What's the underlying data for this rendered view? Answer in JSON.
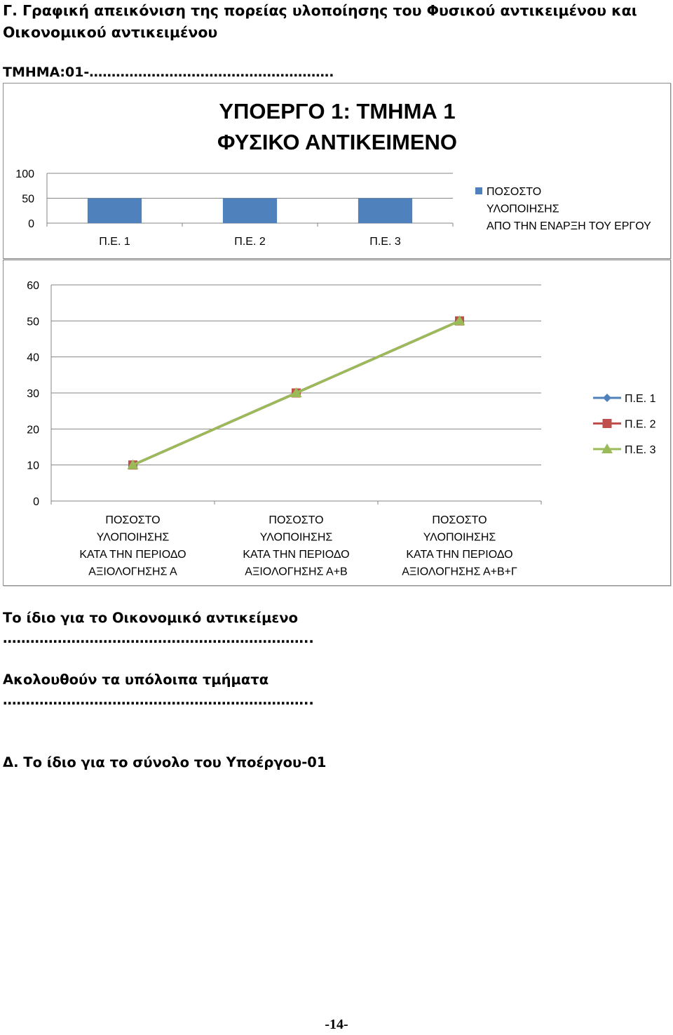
{
  "document": {
    "heading": "Γ. Γραφική απεικόνιση της πορείας υλοποίησης του Φυσικού αντικειμένου και Οικονομικού αντικειμένου",
    "section_label": "ΤΜΗΜΑ:01-……………………………………………….",
    "para_same_financial": "Το ίδιο για το Οικονομικό αντικείμενο",
    "dots_1": "…………………………………………………………..",
    "para_remaining": "Ακολουθούν τα υπόλοιπα τμήματα",
    "dots_2": "…………………………………………………………..",
    "para_total": "Δ. Το ίδιο για το σύνολο του Υποέργου-01",
    "page_number": "-14-"
  },
  "chart_data": [
    {
      "type": "bar",
      "title": [
        "ΥΠΟΕΡΓΟ 1: ΤΜΗΜΑ 1",
        "ΦΥΣΙΚΟ ΑΝΤΙΚΕΙΜΕΝΟ"
      ],
      "categories": [
        "Π.Ε. 1",
        "Π.Ε. 2",
        "Π.Ε. 3"
      ],
      "series": [
        {
          "name": [
            "ΠΟΣΟΣΤΟ",
            "ΥΛΟΠΟΙΗΣΗΣ",
            "ΑΠΟ ΤΗΝ ΕΝΑΡΞΗ ΤΟΥ ΕΡΓΟΥ"
          ],
          "color": "#4f81bd",
          "values": [
            50,
            50,
            50
          ]
        }
      ],
      "yticks": [
        0,
        50,
        100
      ],
      "ylim": [
        0,
        100
      ],
      "grid": true,
      "legend": "right"
    },
    {
      "type": "line",
      "categories": [
        [
          "ΠΟΣΟΣΤΟ",
          "ΥΛΟΠΟΙΗΣΗΣ",
          "ΚΑΤΑ ΤΗΝ ΠΕΡΙΟΔΟ",
          "ΑΞΙΟΛΟΓΗΣΗΣ Α"
        ],
        [
          "ΠΟΣΟΣΤΟ",
          "ΥΛΟΠΟΙΗΣΗΣ",
          "ΚΑΤΑ ΤΗΝ ΠΕΡΙΟΔΟ",
          "ΑΞΙΟΛΟΓΗΣΗΣ Α+Β"
        ],
        [
          "ΠΟΣΟΣΤΟ",
          "ΥΛΟΠΟΙΗΣΗΣ",
          "ΚΑΤΑ ΤΗΝ ΠΕΡΙΟΔΟ",
          "ΑΞΙΟΛΟΓΗΣΗΣ Α+Β+Γ"
        ]
      ],
      "series": [
        {
          "name": "Π.Ε. 1",
          "color": "#4f81bd",
          "marker": "diamond",
          "values": [
            10,
            30,
            50
          ]
        },
        {
          "name": "Π.Ε. 2",
          "color": "#c0504d",
          "marker": "square",
          "values": [
            10,
            30,
            50
          ]
        },
        {
          "name": "Π.Ε. 3",
          "color": "#9bbb59",
          "marker": "triangle",
          "values": [
            10,
            30,
            50
          ]
        }
      ],
      "yticks": [
        0,
        10,
        20,
        30,
        40,
        50,
        60
      ],
      "ylim": [
        0,
        60
      ],
      "grid": true,
      "legend": "right"
    }
  ]
}
